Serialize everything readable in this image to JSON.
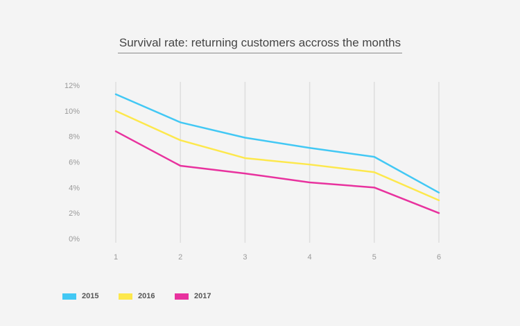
{
  "chart_data": {
    "type": "line",
    "title": "Survival rate: returning customers accross the months",
    "xlabel": "",
    "ylabel": "",
    "categories": [
      "1",
      "2",
      "3",
      "4",
      "5",
      "6"
    ],
    "y_ticks": [
      "0%",
      "2%",
      "4%",
      "6%",
      "8%",
      "10%",
      "12%"
    ],
    "ylim": [
      0,
      12
    ],
    "grid": "vertical",
    "legend_position": "bottom-left",
    "series": [
      {
        "name": "2015",
        "color": "#42c8f4",
        "values": [
          11.3,
          9.1,
          7.9,
          7.1,
          6.4,
          3.6
        ]
      },
      {
        "name": "2016",
        "color": "#fde84c",
        "values": [
          10.0,
          7.7,
          6.3,
          5.8,
          5.2,
          3.0
        ]
      },
      {
        "name": "2017",
        "color": "#e8329e",
        "values": [
          8.4,
          5.7,
          5.1,
          4.4,
          4.0,
          2.0
        ]
      }
    ]
  }
}
